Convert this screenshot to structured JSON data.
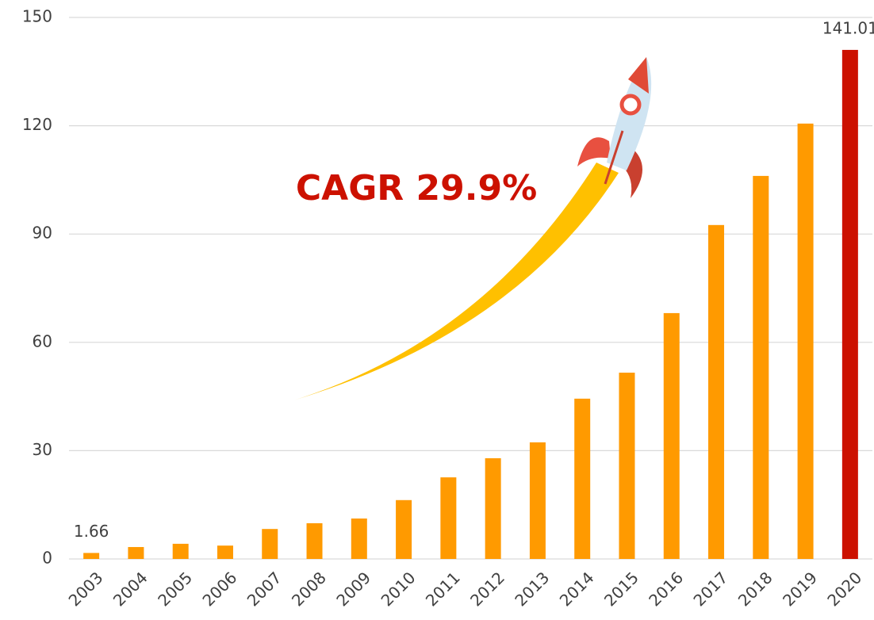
{
  "chart_data": {
    "type": "bar",
    "categories": [
      "2003",
      "2004",
      "2005",
      "2006",
      "2007",
      "2008",
      "2009",
      "2010",
      "2011",
      "2012",
      "2013",
      "2014",
      "2015",
      "2016",
      "2017",
      "2018",
      "2019",
      "2020"
    ],
    "values": [
      1.66,
      3.3,
      4.2,
      3.7,
      8.3,
      9.9,
      11.2,
      16.3,
      22.6,
      27.9,
      32.3,
      44.4,
      51.6,
      68.1,
      92.5,
      106.1,
      120.6,
      141.01
    ],
    "value_labels": [
      "1.66",
      null,
      null,
      null,
      null,
      null,
      null,
      null,
      null,
      null,
      null,
      null,
      null,
      null,
      null,
      null,
      null,
      "141.01"
    ],
    "colors": [
      "#ff9a00",
      "#ff9a00",
      "#ff9a00",
      "#ff9a00",
      "#ff9a00",
      "#ff9a00",
      "#ff9a00",
      "#ff9a00",
      "#ff9a00",
      "#ff9a00",
      "#ff9a00",
      "#ff9a00",
      "#ff9a00",
      "#ff9a00",
      "#ff9a00",
      "#ff9a00",
      "#ff9a00",
      "#cc1100"
    ],
    "ylim": [
      0,
      150
    ],
    "yticks": [
      0,
      30,
      60,
      90,
      120,
      150
    ],
    "grid": true,
    "annotation": "CAGR 29.9%"
  }
}
